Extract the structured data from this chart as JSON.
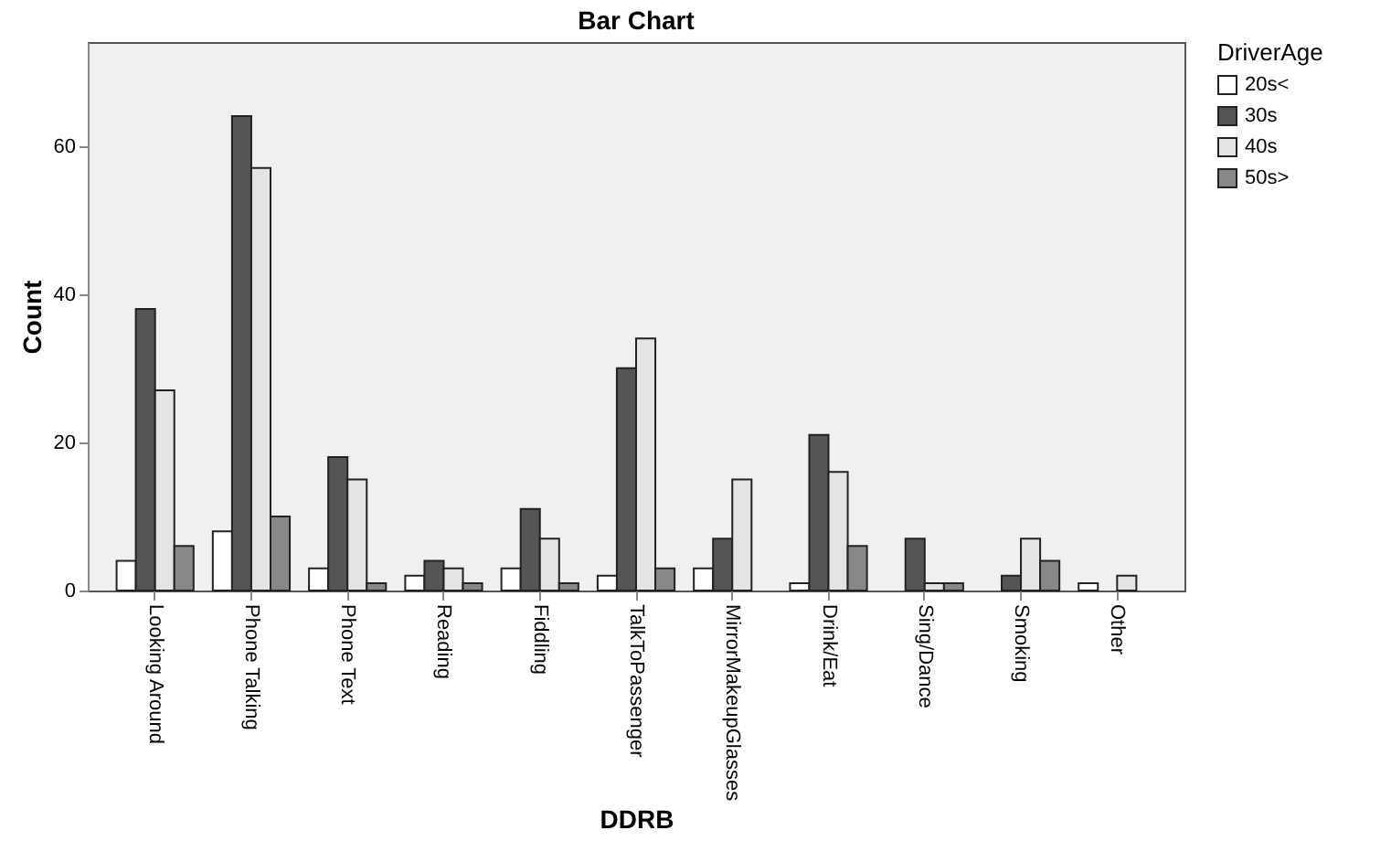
{
  "chart_data": {
    "type": "bar",
    "title": "Bar Chart",
    "xlabel": "DDRB",
    "ylabel": "Count",
    "legend_title": "DriverAge",
    "categories": [
      "Looking Around",
      "Phone Talking",
      "Phone Text",
      "Reading",
      "Fiddling",
      "TalkToPassenger",
      "MirrorMakeupGlasses",
      "Drink/Eat",
      "Sing/Dance",
      "Smoking",
      "Other"
    ],
    "series": [
      {
        "name": "20s<",
        "color": "#ffffff",
        "values": [
          4,
          8,
          3,
          2,
          3,
          2,
          3,
          1,
          0,
          0,
          1
        ]
      },
      {
        "name": "30s",
        "color": "#555555",
        "values": [
          38,
          64,
          18,
          4,
          11,
          30,
          7,
          21,
          7,
          2,
          0
        ]
      },
      {
        "name": "40s",
        "color": "#e4e4e4",
        "values": [
          27,
          57,
          15,
          3,
          7,
          34,
          15,
          16,
          1,
          7,
          2
        ]
      },
      {
        "name": "50s>",
        "color": "#888888",
        "values": [
          6,
          10,
          1,
          1,
          1,
          3,
          0,
          6,
          1,
          4,
          0
        ]
      }
    ],
    "ylim": [
      0,
      74
    ],
    "yticks": [
      0,
      20,
      40,
      60
    ],
    "grid": false,
    "legend": "top right"
  }
}
